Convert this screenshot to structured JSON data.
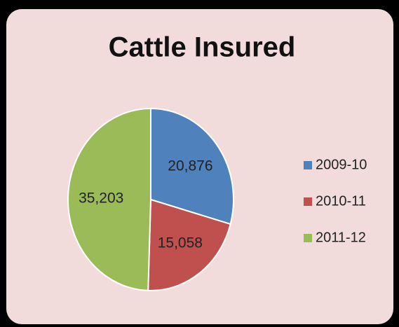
{
  "chart_data": {
    "type": "pie",
    "title": "Cattle Insured",
    "categories": [
      "2009-10",
      "2010-11",
      "2011-12"
    ],
    "values": [
      20876,
      15058,
      35203
    ],
    "value_labels": [
      "20,876",
      "15,058",
      "35,203"
    ],
    "colors": [
      "#4f81bd",
      "#c0504d",
      "#9bbb59"
    ],
    "legend": "right"
  }
}
